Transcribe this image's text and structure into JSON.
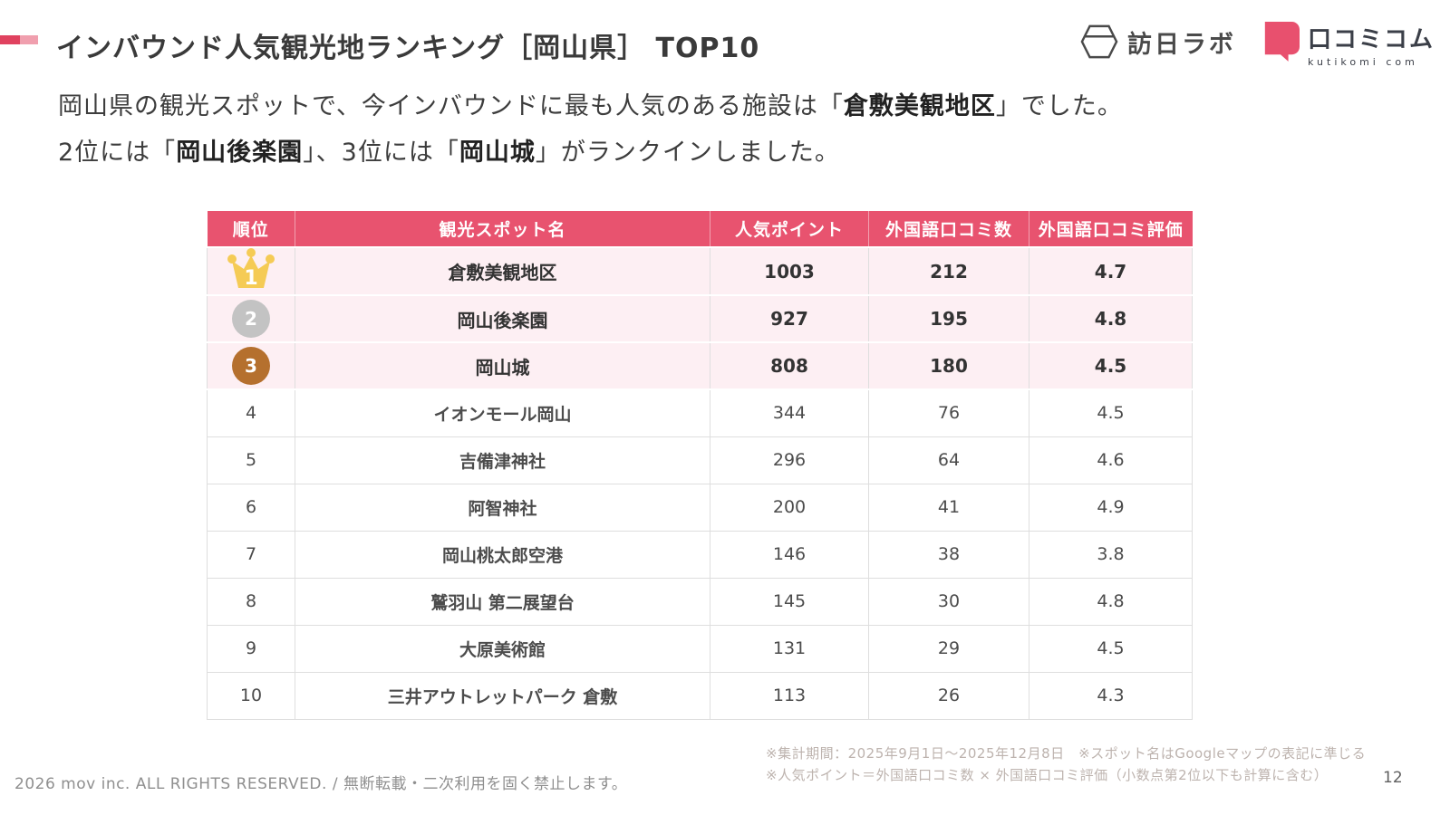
{
  "header": {
    "title": "インバウンド人気観光地ランキング［岡山県］ TOP10",
    "logos": {
      "houjitsu_lab_label": "訪日ラボ",
      "kutikomi_label": "口コミコム",
      "kutikomi_sub": "kutikomi com"
    }
  },
  "intro": {
    "line1_pre": "岡山県の観光スポットで、今インバウンドに最も人気のある施設は「",
    "line1_bold": "倉敷美観地区",
    "line1_post": "」でした。",
    "line2_pre": "2位には「",
    "line2_bold1": "岡山後楽園",
    "line2_mid": "」、3位には「",
    "line2_bold2": "岡山城",
    "line2_post": "」がランクインしました。"
  },
  "table": {
    "columns": [
      "順位",
      "観光スポット名",
      "人気ポイント",
      "外国語口コミ数",
      "外国語口コミ評価"
    ],
    "rows": [
      {
        "rank": "1",
        "name": "倉敷美観地区",
        "points": "1003",
        "reviews": "212",
        "rating": "4.7",
        "medal": "gold"
      },
      {
        "rank": "2",
        "name": "岡山後楽園",
        "points": "927",
        "reviews": "195",
        "rating": "4.8",
        "medal": "silver"
      },
      {
        "rank": "3",
        "name": "岡山城",
        "points": "808",
        "reviews": "180",
        "rating": "4.5",
        "medal": "bronze"
      },
      {
        "rank": "4",
        "name": "イオンモール岡山",
        "points": "344",
        "reviews": "76",
        "rating": "4.5",
        "medal": null
      },
      {
        "rank": "5",
        "name": "吉備津神社",
        "points": "296",
        "reviews": "64",
        "rating": "4.6",
        "medal": null
      },
      {
        "rank": "6",
        "name": "阿智神社",
        "points": "200",
        "reviews": "41",
        "rating": "4.9",
        "medal": null
      },
      {
        "rank": "7",
        "name": "岡山桃太郎空港",
        "points": "146",
        "reviews": "38",
        "rating": "3.8",
        "medal": null
      },
      {
        "rank": "8",
        "name": "鷲羽山 第二展望台",
        "points": "145",
        "reviews": "30",
        "rating": "4.8",
        "medal": null
      },
      {
        "rank": "9",
        "name": "大原美術館",
        "points": "131",
        "reviews": "29",
        "rating": "4.5",
        "medal": null
      },
      {
        "rank": "10",
        "name": "三井アウトレットパーク 倉敷",
        "points": "113",
        "reviews": "26",
        "rating": "4.3",
        "medal": null
      }
    ]
  },
  "footer": {
    "note_line1": "※集計期間：2025年9月1日～2025年12月8日　※スポット名はGoogleマップの表記に準じる",
    "note_line2": "※人気ポイント＝外国語口コミ数 × 外国語口コミ評価（小数点第2位以下も計算に含む）",
    "copyright": "2026 mov inc. ALL RIGHTS RESERVED. / 無断転載・二次利用を固く禁止します。",
    "page_number": "12"
  },
  "colors": {
    "accent_pink": "#e8536f",
    "dash_dark": "#e0425f",
    "dash_light": "#f09fae",
    "top3_row_bg": "#fdeff3",
    "gold": "#f5cb55",
    "silver": "#c3c3c3",
    "bronze": "#b5702e"
  }
}
